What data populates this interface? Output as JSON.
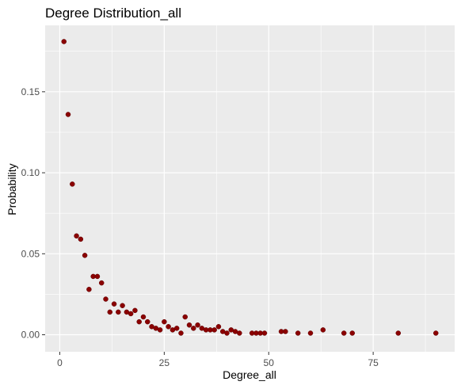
{
  "chart_data": {
    "type": "scatter",
    "title": "Degree Distribution_all",
    "xlabel": "Degree_all",
    "ylabel": "Probability",
    "xlim": [
      -3.5,
      94.5
    ],
    "ylim": [
      -0.0105,
      0.191
    ],
    "x_ticks": [
      0,
      25,
      50,
      75
    ],
    "x_tick_labels": [
      "0",
      "25",
      "50",
      "75"
    ],
    "y_ticks": [
      0.0,
      0.05,
      0.1,
      0.15
    ],
    "y_tick_labels": [
      "0.00",
      "0.05",
      "0.10",
      "0.15"
    ],
    "grid": true,
    "panel_color": "#ebebeb",
    "grid_color": "#ffffff",
    "point_color": "#8b0000",
    "x": [
      1,
      2,
      3,
      4,
      5,
      6,
      7,
      8,
      9,
      10,
      11,
      12,
      13,
      14,
      15,
      16,
      17,
      18,
      19,
      20,
      21,
      22,
      23,
      24,
      25,
      26,
      27,
      28,
      29,
      30,
      31,
      32,
      33,
      34,
      35,
      36,
      37,
      38,
      39,
      40,
      41,
      42,
      43,
      46,
      47,
      48,
      49,
      53,
      54,
      57,
      60,
      63,
      68,
      70,
      81,
      90
    ],
    "y": [
      0.181,
      0.136,
      0.093,
      0.061,
      0.059,
      0.049,
      0.028,
      0.036,
      0.036,
      0.032,
      0.022,
      0.014,
      0.019,
      0.014,
      0.018,
      0.014,
      0.013,
      0.015,
      0.008,
      0.011,
      0.008,
      0.005,
      0.004,
      0.003,
      0.008,
      0.005,
      0.003,
      0.004,
      0.001,
      0.011,
      0.006,
      0.004,
      0.006,
      0.004,
      0.003,
      0.003,
      0.003,
      0.005,
      0.002,
      0.001,
      0.003,
      0.002,
      0.001,
      0.001,
      0.001,
      0.001,
      0.001,
      0.002,
      0.002,
      0.001,
      0.001,
      0.003,
      0.001,
      0.001,
      0.001,
      0.001
    ]
  }
}
